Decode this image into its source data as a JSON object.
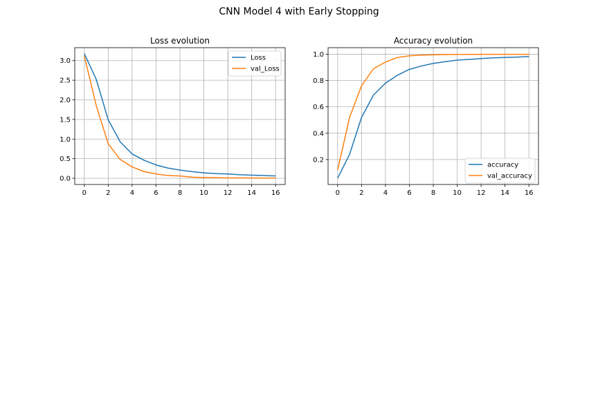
{
  "figure": {
    "title": "CNN Model 4 with Early Stopping"
  },
  "chart_data": [
    {
      "type": "line",
      "title": "Loss evolution",
      "xlabel": "",
      "ylabel": "",
      "xlim": [
        -0.8,
        16.8
      ],
      "ylim": [
        -0.158,
        3.33
      ],
      "xticks": [
        "0",
        "2",
        "4",
        "6",
        "8",
        "10",
        "12",
        "14",
        "16"
      ],
      "yticks": [
        "0.0",
        "0.5",
        "1.0",
        "1.5",
        "2.0",
        "2.5",
        "3.0"
      ],
      "grid": true,
      "legend_position": "upper right",
      "x": [
        0,
        1,
        2,
        3,
        4,
        5,
        6,
        7,
        8,
        9,
        10,
        11,
        12,
        13,
        14,
        15,
        16
      ],
      "series": [
        {
          "name": "Loss",
          "color": "#1f77b4",
          "values": [
            3.18,
            2.52,
            1.49,
            0.93,
            0.62,
            0.46,
            0.34,
            0.26,
            0.21,
            0.17,
            0.14,
            0.12,
            0.11,
            0.09,
            0.08,
            0.07,
            0.06
          ]
        },
        {
          "name": "val_Loss",
          "color": "#ff7f0e",
          "values": [
            3.12,
            1.85,
            0.88,
            0.48,
            0.29,
            0.17,
            0.11,
            0.07,
            0.06,
            0.03,
            0.02,
            0.015,
            0.01,
            0.01,
            0.008,
            0.006,
            0.005
          ]
        }
      ]
    },
    {
      "type": "line",
      "title": "Accuracy evolution",
      "xlabel": "",
      "ylabel": "",
      "xlim": [
        -0.8,
        16.8
      ],
      "ylim": [
        0.0106,
        1.0494
      ],
      "xticks": [
        "0",
        "2",
        "4",
        "6",
        "8",
        "10",
        "12",
        "14",
        "16"
      ],
      "yticks": [
        "0.2",
        "0.4",
        "0.6",
        "0.8",
        "1.0"
      ],
      "grid": true,
      "legend_position": "lower right",
      "x": [
        0,
        1,
        2,
        3,
        4,
        5,
        6,
        7,
        8,
        9,
        10,
        11,
        12,
        13,
        14,
        15,
        16
      ],
      "series": [
        {
          "name": "accuracy",
          "color": "#1f77b4",
          "values": [
            0.058,
            0.24,
            0.52,
            0.69,
            0.78,
            0.84,
            0.885,
            0.91,
            0.93,
            0.943,
            0.955,
            0.96,
            0.967,
            0.972,
            0.975,
            0.978,
            0.982
          ]
        },
        {
          "name": "val_accuracy",
          "color": "#ff7f0e",
          "values": [
            0.12,
            0.52,
            0.76,
            0.89,
            0.94,
            0.975,
            0.988,
            0.993,
            0.995,
            0.997,
            0.998,
            0.998,
            0.999,
            0.999,
            0.999,
            0.999,
            0.999
          ]
        }
      ]
    }
  ]
}
